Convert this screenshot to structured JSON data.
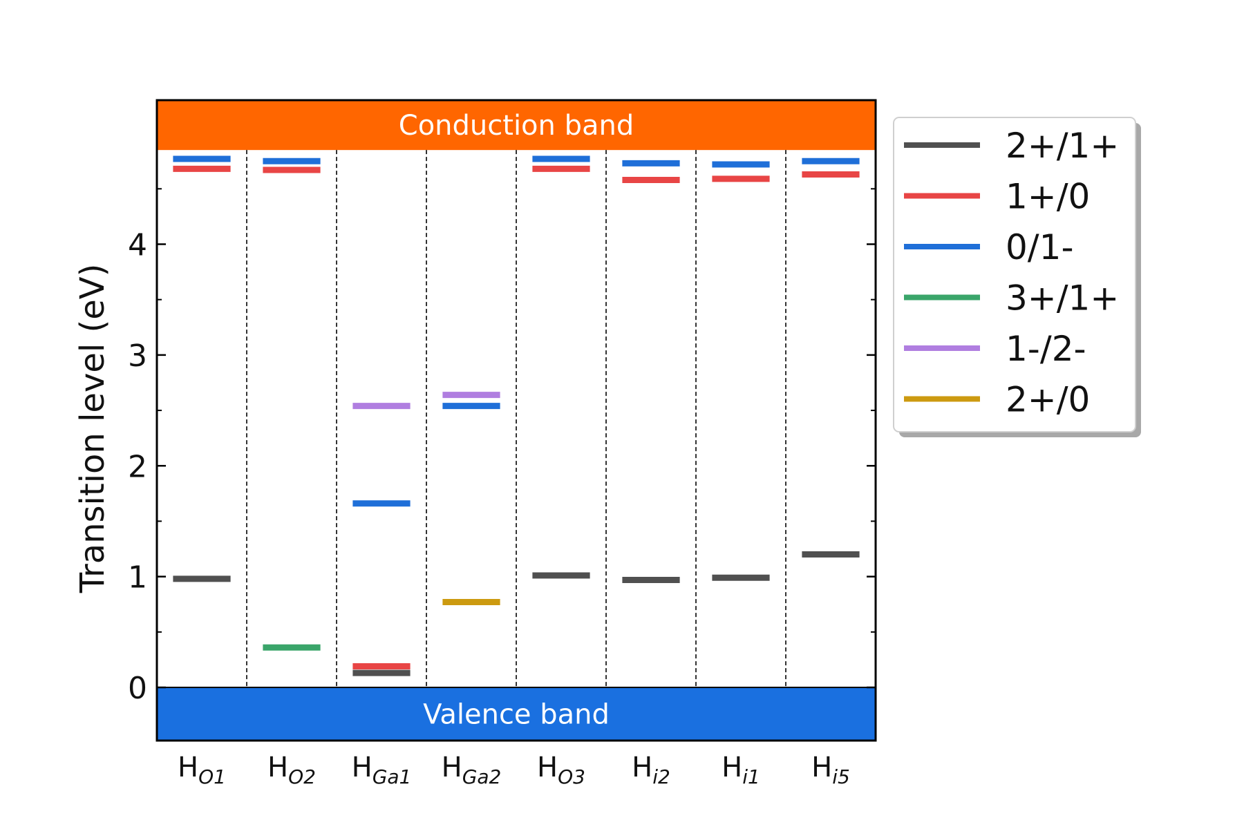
{
  "chart_data": {
    "type": "level-diagram",
    "ylabel": "Transition level (eV)",
    "ylim": [
      -0.48,
      5.3
    ],
    "yticks": [
      0,
      1,
      2,
      3,
      4
    ],
    "minor_yticks": [
      0.5,
      1.5,
      2.5,
      3.5,
      4.5
    ],
    "conduction_band": {
      "label": "Conduction band",
      "from": 4.85,
      "color": "#ff6600"
    },
    "valence_band": {
      "label": "Valence band",
      "to": 0,
      "color": "#1a70e0"
    },
    "categories": [
      {
        "base": "H",
        "sub": "O1"
      },
      {
        "base": "H",
        "sub": "O2"
      },
      {
        "base": "H",
        "sub": "Ga1"
      },
      {
        "base": "H",
        "sub": "Ga2"
      },
      {
        "base": "H",
        "sub": "O3"
      },
      {
        "base": "H",
        "sub": "i2"
      },
      {
        "base": "H",
        "sub": "i1"
      },
      {
        "base": "H",
        "sub": "i5"
      }
    ],
    "series": [
      {
        "name": "2+/1+",
        "color": "#505050",
        "values": [
          0.98,
          null,
          0.13,
          null,
          1.01,
          0.97,
          0.99,
          1.2
        ]
      },
      {
        "name": "1+/0",
        "color": "#e84545",
        "values": [
          4.68,
          4.67,
          0.19,
          null,
          4.68,
          4.58,
          4.59,
          4.63
        ]
      },
      {
        "name": "0/1-",
        "color": "#1f6fd8",
        "values": [
          4.77,
          4.75,
          1.66,
          2.54,
          4.77,
          4.73,
          4.72,
          4.75
        ]
      },
      {
        "name": "3+/1+",
        "color": "#3aa56a",
        "values": [
          null,
          0.36,
          null,
          null,
          null,
          null,
          null,
          null
        ]
      },
      {
        "name": "1-/2-",
        "color": "#b07ee0",
        "values": [
          null,
          null,
          2.54,
          2.64,
          null,
          null,
          null,
          null
        ]
      },
      {
        "name": "2+/0",
        "color": "#cc9a10",
        "values": [
          null,
          null,
          null,
          0.77,
          null,
          null,
          null,
          null
        ]
      }
    ],
    "legend_position": "outside-right-top"
  }
}
